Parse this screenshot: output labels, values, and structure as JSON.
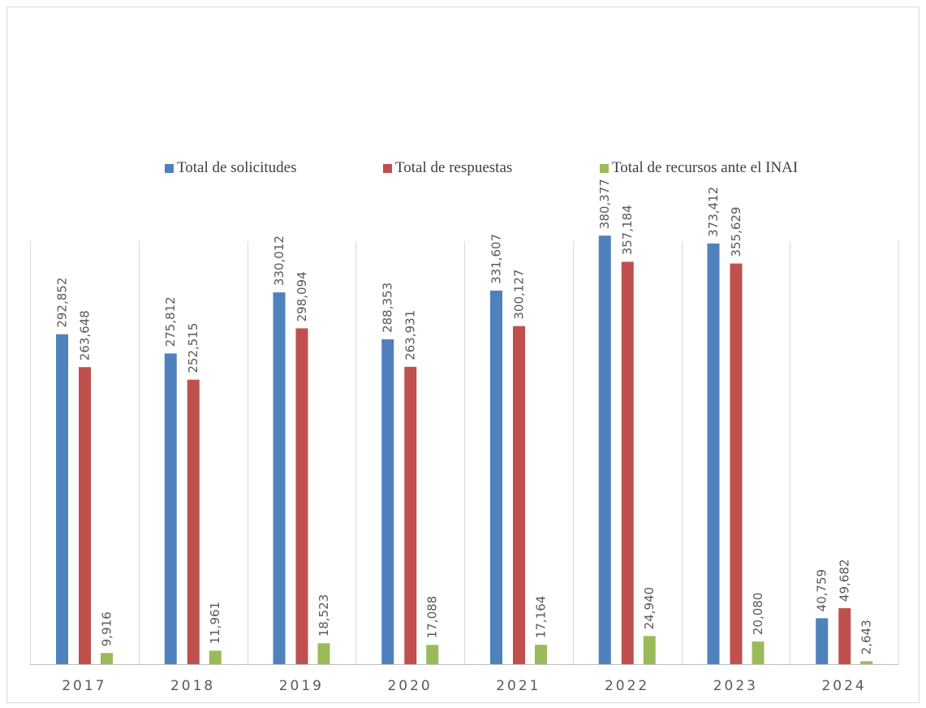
{
  "chart_data": {
    "type": "bar",
    "title": "",
    "xlabel": "",
    "ylabel": "",
    "categories": [
      "2017",
      "2018",
      "2019",
      "2020",
      "2021",
      "2022",
      "2023",
      "2024"
    ],
    "series": [
      {
        "name": "Total de solicitudes",
        "color": "#4f81bd",
        "values": [
          292852,
          275812,
          330012,
          288353,
          331607,
          380377,
          373412,
          40759
        ],
        "labels": [
          "292,852",
          "275,812",
          "330,012",
          "288,353",
          "331,607",
          "380,377",
          "373,412",
          "40,759"
        ]
      },
      {
        "name": "Total de respuestas",
        "color": "#c0504d",
        "values": [
          263648,
          252515,
          298094,
          263931,
          300127,
          357184,
          355629,
          49682
        ],
        "labels": [
          "263,648",
          "252,515",
          "298,094",
          "263,931",
          "300,127",
          "357,184",
          "355,629",
          "49,682"
        ]
      },
      {
        "name": "Total de recursos ante el INAI",
        "color": "#9bbb59",
        "values": [
          9916,
          11961,
          18523,
          17088,
          17164,
          24940,
          20080,
          2643
        ],
        "labels": [
          "9,916",
          "11,961",
          "18,523",
          "17,088",
          "17,164",
          "24,940",
          "20,080",
          "2,643"
        ]
      }
    ],
    "ylim": [
      0,
      400000
    ],
    "grid": "vertical category separators",
    "legend_position": "top-center",
    "data_labels": "rotated vertical above bars"
  }
}
